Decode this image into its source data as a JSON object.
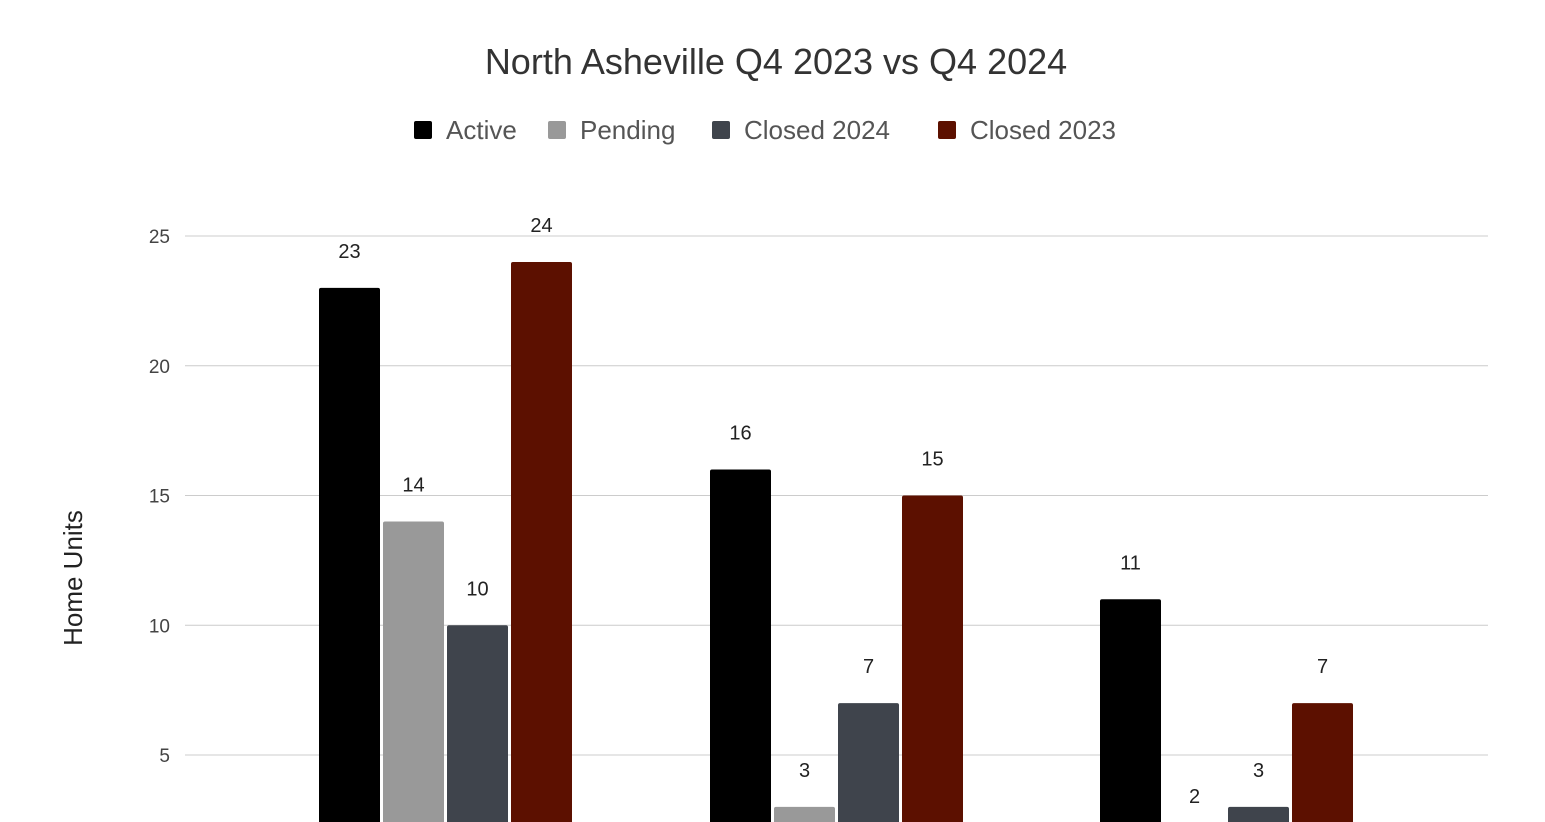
{
  "chart_data": {
    "type": "bar",
    "title": "North Asheville Q4 2023 vs Q4 2024",
    "xlabel": "",
    "ylabel": "Home Units",
    "ylim": [
      0,
      25
    ],
    "yticks": [
      5,
      10,
      15,
      20,
      25
    ],
    "grid": true,
    "legend_position": "top",
    "categories": [
      "",
      "",
      ""
    ],
    "series": [
      {
        "name": "Active",
        "color": "#000000",
        "values": [
          23,
          16,
          11
        ]
      },
      {
        "name": "Pending",
        "color": "#999999",
        "values": [
          14,
          3,
          2
        ]
      },
      {
        "name": "Closed 2024",
        "color": "#3f444c",
        "values": [
          10,
          7,
          3
        ]
      },
      {
        "name": "Closed 2023",
        "color": "#5c1000",
        "values": [
          24,
          15,
          7
        ]
      }
    ]
  }
}
